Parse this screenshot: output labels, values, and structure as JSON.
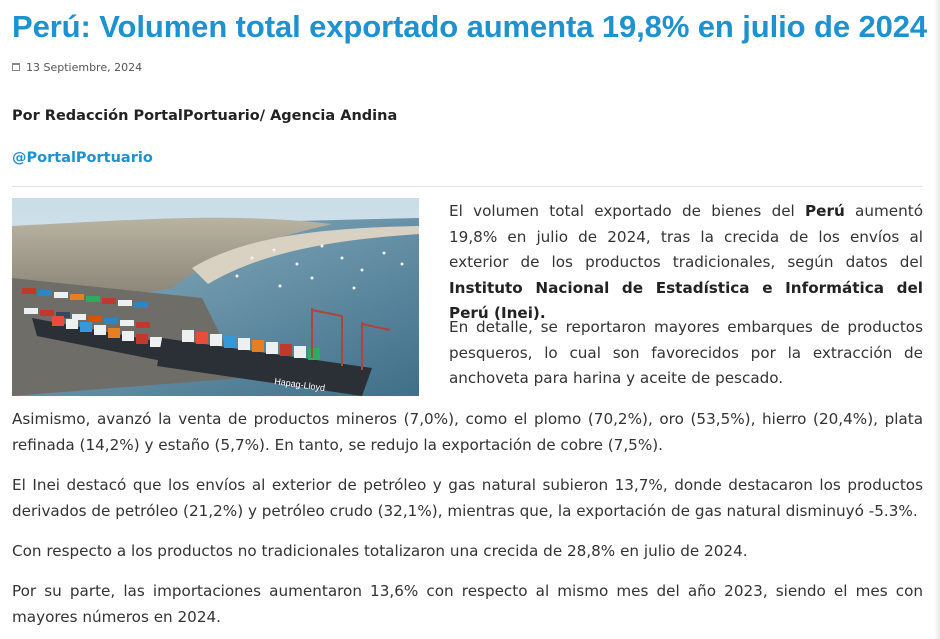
{
  "article": {
    "title": "Perú: Volumen total exportado aumenta 19,8% en julio de 2024",
    "date": "13 Septiembre, 2024",
    "byline": "Por Redacción PortalPortuario/ Agencia Andina",
    "handle": "@PortalPortuario",
    "image": {
      "ship_label": "Hapag-Lloyd"
    },
    "p1": {
      "a": "El volumen total exportado de bienes del ",
      "b": "Perú",
      "c": " aumentó 19,8% en julio de 2024, tras la crecida de los envíos al exterior de los productos tradicionales, según datos del ",
      "d": "Instituto Nacional de Estadística e Informática del Perú (Inei)."
    },
    "p2": "En detalle, se reportaron mayores embarques de productos pesqueros, lo cual son favorecidos por la extracción de anchoveta para harina y aceite de pescado.",
    "p3": "Asimismo, avanzó la venta de productos mineros (7,0%), como el plomo (70,2%), oro (53,5%), hierro (20,4%), plata refinada (14,2%) y estaño (5,7%). En tanto, se redujo la exportación de cobre (7,5%).",
    "p4": "El Inei destacó que los envíos al exterior de petróleo y gas natural subieron 13,7%, donde destacaron los productos derivados de petróleo (21,2%) y petróleo crudo (32,1%), mientras que, la exportación de gas natural disminuyó -5.3%.",
    "p5": "Con respecto a los productos no tradicionales totalizaron una crecida de 28,8% en julio de 2024.",
    "p6": "Por su parte, las importaciones aumentaron 13,6% con respecto al mismo mes del año 2023, siendo el mes con mayores números en 2024."
  },
  "colors": {
    "accent": "#1e91cf",
    "text": "#333333",
    "heading": "#222222"
  }
}
